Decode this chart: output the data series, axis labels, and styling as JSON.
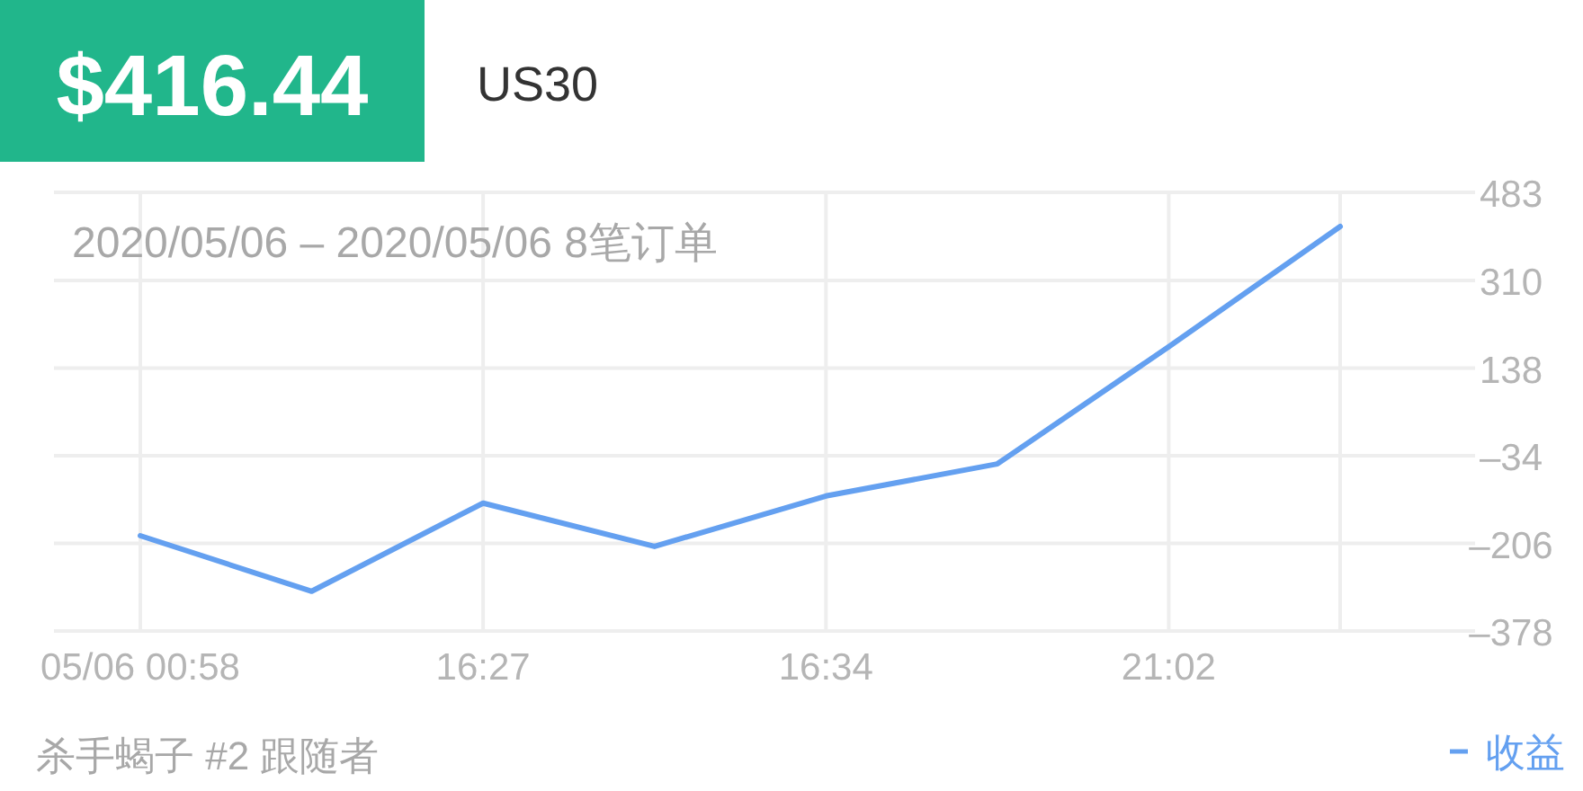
{
  "chart_data": {
    "type": "line",
    "title": "$416.44",
    "subtitle": "US30",
    "annotations": [
      "2020/05/06 – 2020/05/06 8笔订单",
      "杀手蝎子 #2 跟随者"
    ],
    "categories": [
      "05/06 00:58",
      null,
      "16:27",
      null,
      "16:34",
      null,
      "21:02",
      null
    ],
    "series": [
      {
        "name": "收益",
        "color": "#64a0f0",
        "values": [
          -191,
          -300,
          -127,
          -212,
          -113,
          -50,
          180,
          416
        ]
      }
    ],
    "ylim": [
      -378,
      483
    ],
    "yticks": [
      {
        "value": -378,
        "label": "–378"
      },
      {
        "value": -206,
        "label": "–206"
      },
      {
        "value": -34,
        "label": "–34"
      },
      138,
      310,
      483
    ],
    "grid": true,
    "legend": "bottom right",
    "marker": "none",
    "line_style": "solid"
  }
}
